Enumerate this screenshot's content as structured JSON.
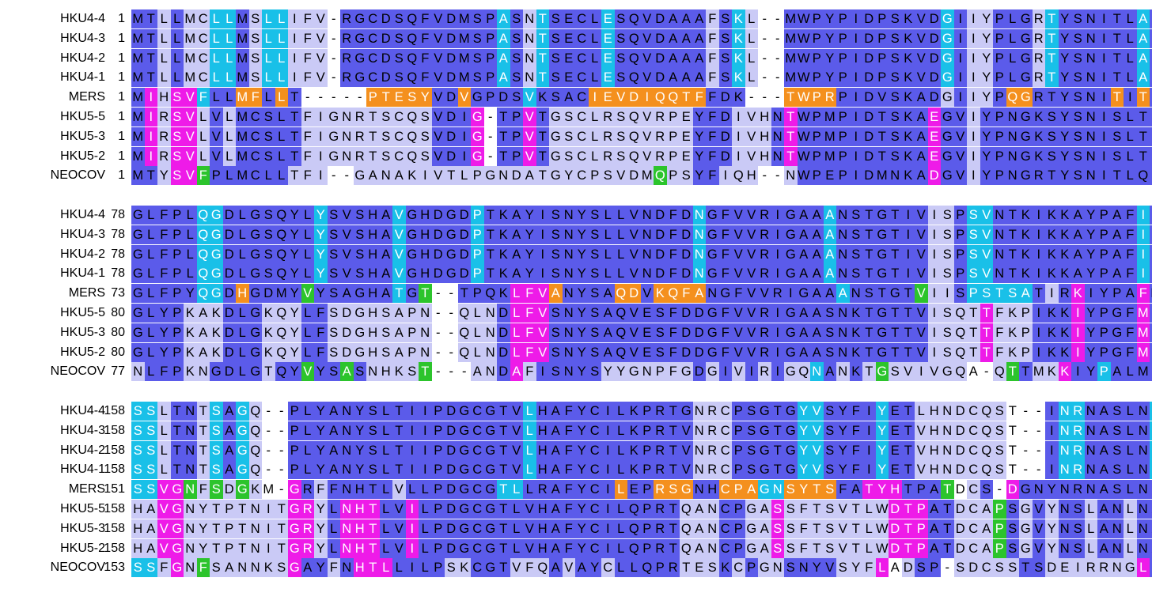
{
  "colors": {
    "conserved": "#5b5bea",
    "similar": "#9c9cf0",
    "weak": "#cacaf6",
    "cyan": "#19c0e8",
    "magenta": "#ee1be8",
    "orange": "#f4901e",
    "green": "#2cc42c"
  },
  "alignment": {
    "blocks": [
      {
        "rows": [
          {
            "name": "HKU4-4",
            "start": "1",
            "seq": "MTLLMCLLMSLLIFV-RGCDSQFVDMSPASNTSECLESQVDAAAFSKL--MWPYPIDPSKVDGIIYPLGRTYSNITLAYT",
            "colors": "PPWPWWCCPWCCWWW-PPPPPPPPPPPPCPWCPPPPCPPPPPPPWPCWPPPPPPPPPPPPPPCPWWPPPWCPPPPPPCPPP"
          },
          {
            "name": "HKU4-3",
            "start": "1",
            "seq": "MTLLMCLLMSLLIFV-RGCDSQFVDMSPASNTSECLESQVDAAAFSKL--MWPYPIDPSKVDGIIYPLGRTYSNITLAYT",
            "colors": "PPWPWWCCPWCCWWW-PPPPPPPPPPPPCPWCPPPPCPPPPPPPWPCWPPPPPPPPPPPPPPCPWWPPPWCPPPPPPCPPP"
          },
          {
            "name": "HKU4-2",
            "start": "1",
            "seq": "MTLLMCLLMSLLIFV-RGCDSQFVDMSPASNTSECLESQVDAAAFSKL--MWPYPIDPSKVDGIIYPLGRTYSNITLAYT",
            "colors": "PPWPWWCCPWCCWWW-PPPPPPPPPPPPCPWCPPPPCPPPPPPPWPCWPPPPPPPPPPPPPPCPWWPPPWCPPPPPPCPPP"
          },
          {
            "name": "HKU4-1",
            "start": "1",
            "seq": "MTLLMCLLMSLLIFV-RGCDSQFVDMSPASNTSECLESQVDAAAFSKL--MWPYPIDPSKVDGIIYPLGRTYSNITLAYT",
            "colors": "PPWPWWCCPWCCWWW-PPPPPPPPPPPPCPWCPPPPCPPPPPPPWPCWPPPPPPPPPPPPPPCPWWPPPWCPPPPPPCPPP"
          },
          {
            "name": "MERS",
            "start": "1",
            "seq": "MIHSVFLLMFLLT-----PTESYVDVGPDSVKSACIEVDIQQTFFDK---TWPRPIDVSKADGIIYPQGRTYSNITITYQ",
            "colors": "PMWMMCPPOOPOP-----OOOOOPPOPPPPCPPPPOOOOOOOOOPPP---OOOOPPPPPPPPWPWWPOOPPPPPPOPOPO"
          },
          {
            "name": "HKU5-5",
            "start": "1",
            "seq": "MIRSVLVLMCSLTFIGNRTSCQSVDIG-TPVTGSCLRSQVRPEYFDIVHNTWPMPIDTSKAEGVIYPNGKSYSNISLTYT",
            "colors": "PMWMMWPWPPPPPWWWWWWWWWWPPPM-PPMPWWWWWWWWWWWPPPWWWPMPPPPPPPPPPMPPWPPPPPPPPPPPPPPPP"
          },
          {
            "name": "HKU5-3",
            "start": "1",
            "seq": "MIRSVLVLMCSLTFIGNRTSCQSVDIG-TPVTGSCLRSQVRPEYFDIVHNTWPMPIDTSKAEGVIYPNGKSYSNISLTYT",
            "colors": "PMWMMWPWPPPPPWWWWWWWWWWPPPM-PPMPWWWWWWWWWWWPPPWWWPMPPPPPPPPPPMPPWPPPPPPPPPPPPPPPP"
          },
          {
            "name": "HKU5-2",
            "start": "1",
            "seq": "MIRSVLVLMCSLTFIGNRTSCQSVDIG-TPVTGSCLRSQVRPEYFDIVHNTWPMPIDTSKAEGVIYPNGKSYSNISLTYT",
            "colors": "PMWMMWPWPPPPPWWWWWWWWWWPPPM-PPMPWWWWWWWWWWWPPPWWWPMPPPPPPPPPPMPPWPPPPPPPPPPPPPPPP"
          },
          {
            "name": "NEOCOV",
            "start": "1",
            "seq": "MTYSVFPLMCLLTFI--GANAKIVTLPGNDATGYCPSVDMQPSYFIQH--NWPEPIDMNKADGVIYPNGRTYSNITLQTT",
            "colors": "PPWMMGPPPPPPWWW--WWWWWWWWWWWWWWWWWWWWWWWGWWPPWWW--WPPPPPPPPPPMPPWPPPPPPPPPPPPPPPP"
          }
        ]
      },
      {
        "rows": [
          {
            "name": "HKU4-4",
            "start": "78",
            "seq": "GLFPLQGDLGSQYLYSVSHAVGHDGDPTKAYISNYSLLVNDFDNGFVVRIGAAANSTGTIVISPSVNTKIKKAYPAFILG",
            "colors": "PPPPPCCPPPPPPPCPPPPPCPPPPPCPPPPPPPPPPPPPPPPCPPPPPPPPPCPPPPPPPWWPCCPPPPPPPPPPPCPWPP"
          },
          {
            "name": "HKU4-3",
            "start": "78",
            "seq": "GLFPLQGDLGSQYLYSVSHAVGHDGDPTKAYISNYSLLVNDFDNGFVVRIGAAANSTGTIVISPSVNTKIKKAYPAFILG",
            "colors": "PPPPPCCPPPPPPPCPPPPPCPPPPPCPPPPPPPPPPPPPPPPCPPPPPPPPPCPPPPPPPWWPCCPPPPPPPPPPPCPWPP"
          },
          {
            "name": "HKU4-2",
            "start": "78",
            "seq": "GLFPLQGDLGSQYLYSVSHAVGHDGDPTKAYISNYSLLVNDFDNGFVVRIGAAANSTGTIVISPSVNTKIKKAYPAFILG",
            "colors": "PPPPPCCPPPPPPPCPPPPPCPPPPPCPPPPPPPPPPPPPPPPCPPPPPPPPPCPPPPPPPWWPCCPPPPPPPPPPPCPWPP"
          },
          {
            "name": "HKU4-1",
            "start": "78",
            "seq": "GLFPLQGDLGSQYLYSVSHAVGHDGDPTKAYISNYSLLVNDFDNGFVVRIGAAANSTGTIVISPSVNTKIKKAYPAFILG",
            "colors": "PPPPPCCPPPPPPPCPPPPPCPPPPPCPPPPPPPPPPPPPPPPCPPPPPPPPPCPPPPPPPWWPCCPPPPPPPPPPPCPWPP"
          },
          {
            "name": "MERS",
            "start": "73",
            "seq": "GLFPYQGDHGDMYVYSAGHATGT--TPQKLFVANYSAQDVKQFANGFVVRIGAAANSTGTVIISPSTSATIRKIYPAFMLG",
            "colors": "PPPPPCCPOPPPPGPPPPPPCPG--PPPPMMMOPPPPOOPOOOOPPPPPPPPPPCPPPPPGWWPCCCCCPWPMPPPPMPPP"
          },
          {
            "name": "HKU5-5",
            "start": "80",
            "seq": "GLYPKAKDLGKQYLFSDGHSAPN--QLNDLFVSNYSAQVESFDDGFVVRIGAASNKTGTTVISQTTFKPIKKIYPGFMLG",
            "colors": "PPPPWWWPPPWWWPPWWWWWWWW--WWWPMMMPPPPPPPPPPPPPPPPPPPPPPPPPPPPPWWWWMWWWPPPMPPPPMPPP"
          },
          {
            "name": "HKU5-3",
            "start": "80",
            "seq": "GLYPKAKDLGKQYLFSDGHSAPN--QLNDLFVSNYSAQVESFDDGFVVRIGAASNKTGTTVISQTTFKPIKKIYPGFMLG",
            "colors": "PPPPWWWPPPWWWPPWWWWWWWW--WWWPMMMPPPPPPPPPPPPPPPPPPPPPPPPPPPPPWWWWMWWWPPPMPPPPMPPP"
          },
          {
            "name": "HKU5-2",
            "start": "80",
            "seq": "GLYPKAKDLGKQYLFSDGHSAPN--QLNDLFVSNYSAQVESFDDGFVVRIGAASNKTGTTVISQTTFKPIKKIYPGFMLG",
            "colors": "PPPPWWWPPPWWWPPWWWWWWWW--WWWPMMMPPPPPPPPPPPPPPPPPPPPPPPPPPPPPWWWWMWWWPPPMPPPPMPPP"
          },
          {
            "name": "NEOCOV",
            "start": "77",
            "seq": "NLFPKNGDLGTQYVYSASNHKST---ANDAFISNYSYYGNPFGDGIVIRIGQNANKTGSVIVGQA-QTTMKKIYPALMLG",
            "colors": "WPPPWWPPPPWPPGPPGPWWWWG---WWPMWPPPPPWWWWWWWPWPWPWPWWCPWPWGWWWWWW-WWGPWWMPPCPPPP"
          }
        ]
      },
      {
        "rows": [
          {
            "name": "HKU4-4",
            "start": "158",
            "seq": "SSLTNTSAGQ--PLYANYSLTIIPDGCGTVLHAFYCILKPRTGNRCPSGTGYVSYFIYETLHNDCQST--INRNASLNSF",
            "colors": "CCWPPWCPCW--PPPPPPPPPPPPPPPPPPCPPPPPPPPPPPPWWWPPPPPCCPPPPCPPWWWWWWW--PPCCPPPPPC"
          },
          {
            "name": "HKU4-3",
            "start": "158",
            "seq": "SSLTNTSAGQ--PLYANYSLTIIPDGCGTVLHAFYCILKPRTVNRCPSGTGYVSYFIYETVHNDCQST--INRNASLNSF",
            "colors": "CCWPPWCPCW--PPPPPPPPPPPPPPPPPPCPPPPPPPPPPPPWWWPPPPPCCPPPPCPPWWWWWWW--PPCCPPPPPC"
          },
          {
            "name": "HKU4-2",
            "start": "158",
            "seq": "SSLTNTSAGQ--PLYANYSLTIIPDGCGTVLHAFYCILKPRTVNRCPSGTGYVSYFIYETVHNDCQST--INRNASLNSF",
            "colors": "CCWPPWCPCW--PPPPPPPPPPPPPPPPPPCPPPPPPPPPPPPWWWPPPPPCCPPPPCPPWWWWWWW--PPCCPPPPPC"
          },
          {
            "name": "HKU4-1",
            "start": "158",
            "seq": "SSLTNTSAGQ--PLYANYSLTIIPDGCGTVLHAFYCILKPRTVNRCPSGTGYVSYFIYETVHNDCQST--INRNASLNSF",
            "colors": "CCWPPWCPCW--PPPPPPPPPPPPPPPPPPCPPPPPPPPPPPPWWWPPPPPCCPPPPCPPWWWWWWW--PPCCPPPPPC"
          },
          {
            "name": "MERS",
            "start": "151",
            "seq": "SSVGNFSDGKM-GRFFNHTLVLLPDGCGTLLRAFYCILEPRSGNHCPAGNSYTSFATYHTPATDCS-DGNYNRNASLNSF",
            "colors": "CCMMGWGWGW-MMPWPPPPPWPPPPPPPCCPPPPPPPOPPOOOPPOOOCCOOOOPPMMMPPPG-WPMMPPPPPPPPP"
          },
          {
            "name": "HKU5-5",
            "start": "158",
            "seq": "HAVGNYTPTNITGRYLNHTLVILPDGCGTLVHAFYCILQPRTQANCPGASSFTSVTLWDTPATDCAPSGVYNSLANLNAF",
            "colors": "WWMMWWWWWWWWMMWPMMMPPMPPPPPPPPPPPPPPPPPPPPWWWPPWWMWWWWWWWWMMMPPWWWGPWPWPPWPPWP"
          },
          {
            "name": "HKU5-3",
            "start": "158",
            "seq": "HAVGNYTPTNITGRYLNHTLVILPDGCGTLVHAFYCILQPRTQANCPGASSFTSVTLWDTPATDCAPSGVYNSLANLNAF",
            "colors": "WWMMWWWWWWWWMMWPMMMPPMPPPPPPPPPPPPPPPPPPPPWWWPPWWMWWWWWWWWMMMPPWWWGPWPWPPWPPWP"
          },
          {
            "name": "HKU5-2",
            "start": "158",
            "seq": "HAVGNYTPTNITGRYLNHTLVILPDGCGTLVHAFYCILQPRTQANCPGASSFTSVTLWDTPATDCAPSGVYNSLANLNAF",
            "colors": "WWMMWWWWWWWWMMWPMMMPPMPPPPPPPPPPPPPPPPPPPPWWWPPWWMWWWWWWWWMMMPPWWWGPWPWPPWPPWP"
          },
          {
            "name": "NEOCOV",
            "start": "153",
            "seq": "SSFGNFSANNKSGAYFNHTLLILPSKCGTVFQAVAYCLLQPRTESKCPGNSNYVSYFLADSP-SDCSSTSDEIRRNGLRDI",
            "colors": "CCWMWGWWWWWWMPPWPMMMPPPPWWPPPWWWPWPPWPPPPPWWWPWPWWPPPPWWWM-WPPGWWWWWPPWWWWWWWM"
          }
        ]
      }
    ]
  }
}
